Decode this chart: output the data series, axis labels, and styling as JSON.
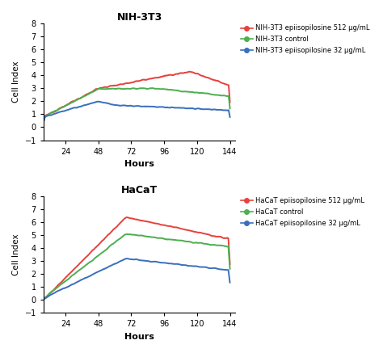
{
  "title_top": "NIH-3T3",
  "title_bottom": "HaCaT",
  "xlabel": "Hours",
  "ylabel": "Cell Index",
  "ylim": [
    -1,
    8
  ],
  "yticks": [
    -1,
    0,
    1,
    2,
    3,
    4,
    5,
    6,
    7,
    8
  ],
  "xticks": [
    24,
    48,
    72,
    96,
    120,
    144
  ],
  "xmin": 8,
  "xmax": 148,
  "colors": {
    "red": "#E8423C",
    "green": "#4CAF50",
    "blue": "#3A6FBF"
  },
  "legend_top": [
    "NIH-3T3 epiisopilosine 512 µg/mL",
    "NIH-3T3 control",
    "NIH-3T3 epiisopilosine 32 µg/mL"
  ],
  "legend_bottom": [
    "HaCaT epiisopilosine 512 µg/mL",
    "HaCaT control",
    "HaCaT epiisopilosine 32 µg/mL"
  ],
  "figsize": [
    4.74,
    4.37
  ],
  "dpi": 100
}
